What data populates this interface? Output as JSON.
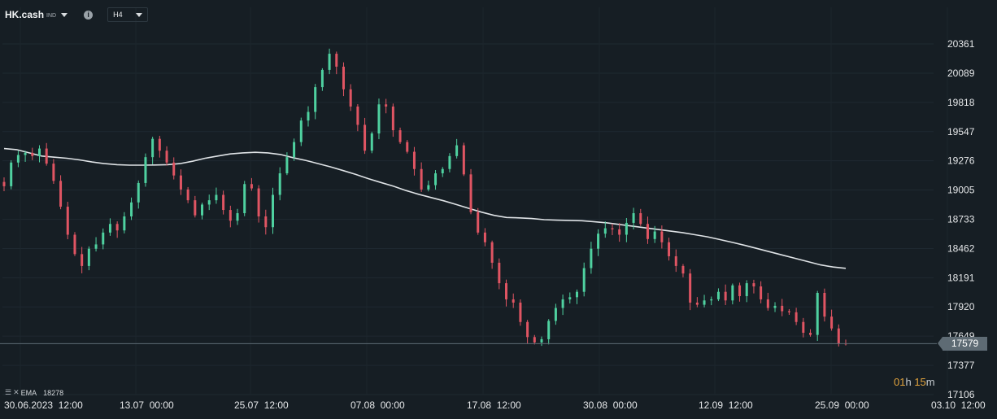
{
  "toolbar": {
    "symbol": "HK.cash",
    "symbol_tag": "IND",
    "info_icon": "i",
    "timeframe": "H4"
  },
  "legend": {
    "indicator": "EMA",
    "value": "18278"
  },
  "countdown": {
    "hours": "01",
    "hours_unit": "h",
    "minutes": "15",
    "minutes_unit": "m"
  },
  "price_badge": "17579",
  "colors": {
    "background": "#161e24",
    "bull": "#4fd1a0",
    "bear": "#e05563",
    "ema": "#dfe3e6",
    "price_line": "#5e6b74",
    "countdown": "#e2a33c"
  },
  "chart_data": {
    "type": "candlestick",
    "x_ticks": [
      "30.06.2023  12:00",
      "13.07  00:00",
      "25.07  12:00",
      "07.08  00:00",
      "17.08  12:00",
      "30.08  00:00",
      "12.09  12:00",
      "25.09  00:00",
      "03.10  12:00"
    ],
    "y_ticks": [
      20361,
      20089,
      19818,
      19547,
      19276,
      19005,
      18733,
      18462,
      18191,
      17920,
      17649,
      17377,
      17106
    ],
    "ylim": [
      17106,
      20361
    ],
    "last_price": 17579,
    "ema_period_label": "EMA",
    "ema_last": 18278,
    "closes": [
      19040,
      19260,
      19330,
      19350,
      19320,
      19390,
      19250,
      19090,
      18850,
      18590,
      18410,
      18300,
      18460,
      18500,
      18610,
      18690,
      18630,
      18760,
      18890,
      19070,
      19310,
      19480,
      19370,
      19260,
      19140,
      19010,
      18910,
      18770,
      18870,
      18910,
      18960,
      18820,
      18720,
      18790,
      19060,
      19020,
      18760,
      18660,
      18960,
      19160,
      19310,
      19450,
      19650,
      19730,
      19960,
      20120,
      20270,
      20150,
      19940,
      19780,
      19610,
      19370,
      19530,
      19800,
      19780,
      19560,
      19450,
      19360,
      19200,
      19010,
      19050,
      19160,
      19200,
      19320,
      19420,
      19150,
      18800,
      18610,
      18520,
      18330,
      18140,
      17990,
      17960,
      17780,
      17640,
      17590,
      17620,
      17790,
      17910,
      17990,
      18010,
      18060,
      18280,
      18460,
      18600,
      18650,
      18640,
      18590,
      18700,
      18790,
      18690,
      18550,
      18620,
      18520,
      18390,
      18300,
      18230,
      17960,
      17940,
      17980,
      17990,
      18060,
      17980,
      18120,
      18020,
      18140,
      18110,
      17990,
      17910,
      17930,
      17880,
      17870,
      17780,
      17680,
      17660,
      18050,
      17830,
      17720,
      17580,
      17579
    ],
    "ema": [
      19390,
      19380,
      19350,
      19320,
      19310,
      19300,
      19285,
      19265,
      19250,
      19240,
      19236,
      19236,
      19237,
      19240,
      19250,
      19272,
      19300,
      19320,
      19340,
      19350,
      19355,
      19350,
      19335,
      19305,
      19280,
      19250,
      19220,
      19185,
      19150,
      19110,
      19075,
      19040,
      19000,
      18965,
      18935,
      18905,
      18870,
      18835,
      18800,
      18770,
      18750,
      18746,
      18740,
      18730,
      18725,
      18723,
      18720,
      18710,
      18700,
      18685,
      18670,
      18655,
      18640,
      18625,
      18610,
      18590,
      18570,
      18545,
      18518,
      18490,
      18460,
      18430,
      18400,
      18370,
      18340,
      18310,
      18290,
      18278
    ]
  }
}
